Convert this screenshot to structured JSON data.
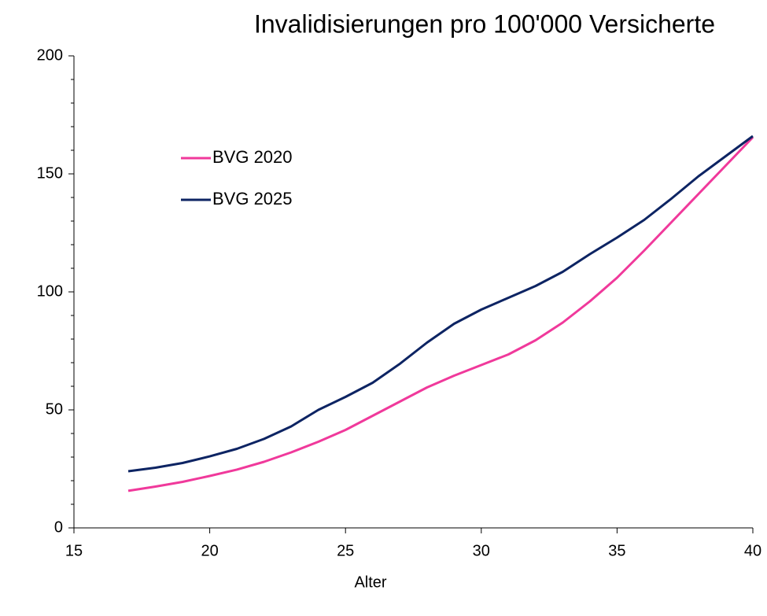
{
  "chart_data": {
    "type": "line",
    "title": "Invalidisierungen pro 100'000 Versicherte",
    "x_label": "Alter",
    "x": [
      17,
      18,
      19,
      20,
      21,
      22,
      23,
      24,
      25,
      26,
      27,
      28,
      29,
      30,
      31,
      32,
      33,
      34,
      35,
      36,
      37,
      38,
      39,
      40
    ],
    "series": [
      {
        "name": "BVG 2020",
        "color": "#f0399b",
        "values": [
          15.7,
          17.5,
          19.5,
          22,
          24.7,
          28,
          32,
          36.5,
          41.5,
          47.5,
          53.5,
          59.5,
          64.5,
          69,
          73.5,
          79.5,
          87,
          96,
          106,
          117.5,
          129.5,
          141.5,
          153.5,
          165.5
        ]
      },
      {
        "name": "BVG 2025",
        "color": "#0d2463",
        "values": [
          24,
          25.5,
          27.5,
          30.3,
          33.5,
          37.7,
          43,
          50,
          55.5,
          61.5,
          69.5,
          78.5,
          86.5,
          92.5,
          97.5,
          102.5,
          108.5,
          116,
          123,
          130.5,
          139.5,
          149,
          157.5,
          166
        ]
      }
    ],
    "xlim": [
      15,
      40
    ],
    "xticks": [
      15,
      20,
      25,
      30,
      35,
      40
    ],
    "ylim": [
      0,
      200
    ],
    "yticks": [
      0,
      50,
      100,
      150,
      200
    ],
    "yminorticks": [
      10,
      20,
      30,
      40,
      60,
      70,
      80,
      90,
      110,
      120,
      130,
      140,
      160,
      170,
      180,
      190
    ],
    "grid": false,
    "legend": "upper left"
  }
}
